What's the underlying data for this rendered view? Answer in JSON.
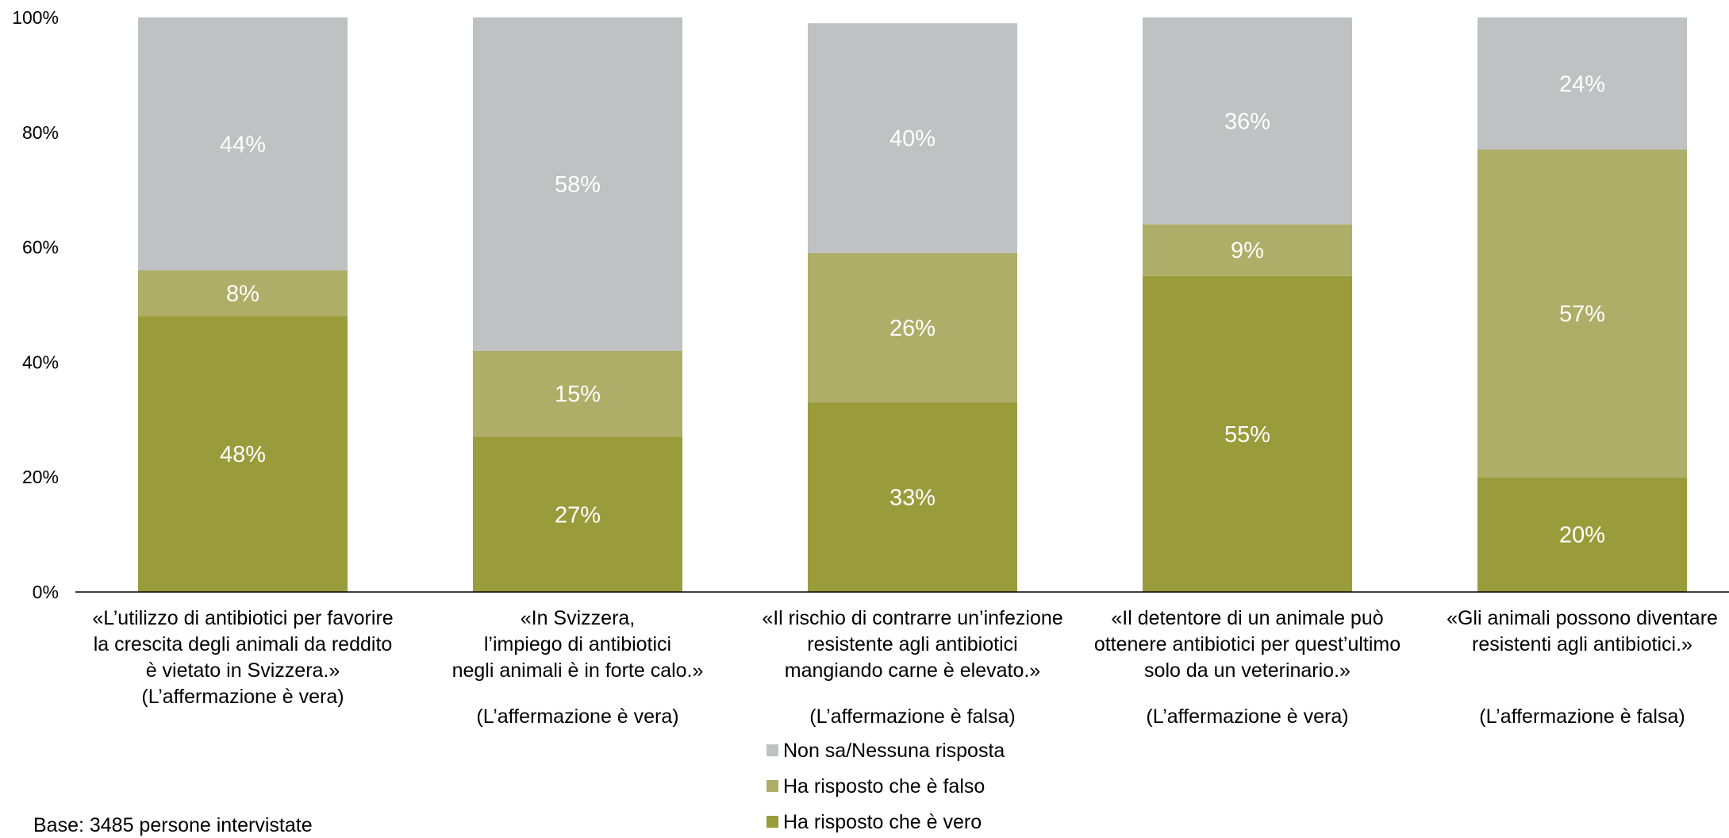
{
  "chart_data": {
    "type": "bar",
    "stacked": true,
    "y_axis": {
      "ticks": [
        "0%",
        "20%",
        "40%",
        "60%",
        "80%",
        "100%"
      ],
      "ylim": [
        0,
        100
      ],
      "grid": false
    },
    "categories": [
      {
        "lines": [
          "«L’utilizzo di antibiotici per favorire",
          "la crescita degli animali da reddito",
          "è vietato in Svizzera.»",
          "(L’affermazione è vera)"
        ],
        "blank_before_last": false
      },
      {
        "lines": [
          "«In Svizzera,",
          "l’impiego di antibiotici",
          "negli animali è in forte calo.»",
          "(L’affermazione è vera)"
        ],
        "blank_before_last": true
      },
      {
        "lines": [
          "«Il rischio di contrarre un’infezione",
          "resistente agli antibiotici",
          "mangiando carne è elevato.»",
          "(L’affermazione è falsa)"
        ],
        "blank_before_last": true
      },
      {
        "lines": [
          "«Il detentore di un animale può",
          "ottenere antibiotici per quest’ultimo",
          "solo da un veterinario.»",
          "(L’affermazione è vera)"
        ],
        "blank_before_last": true
      },
      {
        "lines": [
          "«Gli animali possono diventare",
          "resistenti agli antibiotici.»",
          "(L’affermazione è falsa)"
        ],
        "blank_before_last": true
      }
    ],
    "series": [
      {
        "name": "Ha risposto che è vero",
        "color": "#9a9c3c",
        "values": [
          48,
          27,
          33,
          55,
          20
        ],
        "labels": [
          "48%",
          "27%",
          "33%",
          "55%",
          "20%"
        ]
      },
      {
        "name": "Ha risposto che è falso",
        "color": "#aeae68",
        "values": [
          8,
          15,
          26,
          9,
          57
        ],
        "labels": [
          "8%",
          "15%",
          "26%",
          "9%",
          "57%"
        ]
      },
      {
        "name": "Non sa/Nessuna risposta",
        "color": "#bfc1c2",
        "values": [
          44,
          58,
          40,
          36,
          24
        ],
        "labels": [
          "44%",
          "58%",
          "40%",
          "36%",
          "24%"
        ]
      }
    ],
    "legend": {
      "position": "bottom-center",
      "order": [
        "Non sa/Nessuna risposta",
        "Ha risposto che è falso",
        "Ha risposto che è vero"
      ]
    }
  },
  "footnote": "Base: 3485 persone intervistate"
}
